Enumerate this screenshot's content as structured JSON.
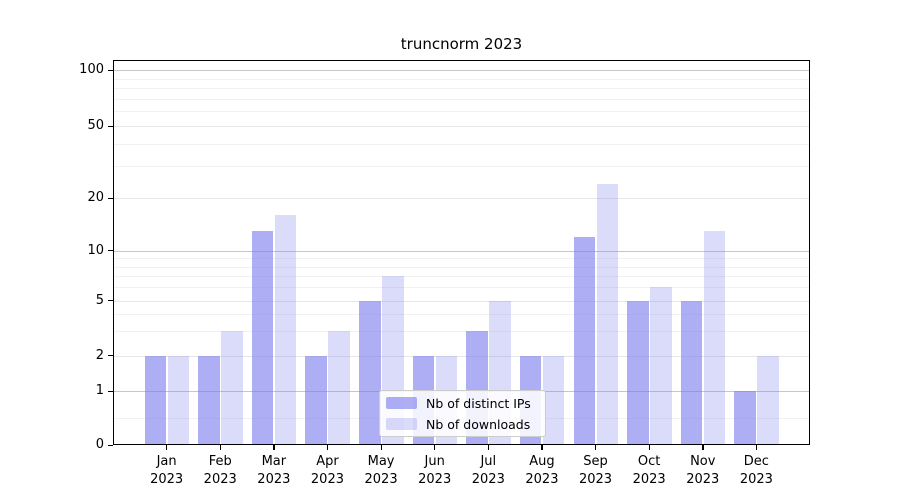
{
  "title": "truncnorm 2023",
  "legend": {
    "items": [
      {
        "label": "Nb of distinct IPs"
      },
      {
        "label": "Nb of downloads"
      }
    ]
  },
  "chart_data": {
    "type": "bar",
    "title": "truncnorm 2023",
    "categories": [
      "Jan 2023",
      "Feb 2023",
      "Mar 2023",
      "Apr 2023",
      "May 2023",
      "Jun 2023",
      "Jul 2023",
      "Aug 2023",
      "Sep 2023",
      "Oct 2023",
      "Nov 2023",
      "Dec 2023"
    ],
    "series": [
      {
        "name": "Nb of distinct IPs",
        "color": "rgba(124,124,238,0.62)",
        "values": [
          2,
          2,
          13,
          2,
          5,
          2,
          3,
          2,
          12,
          5,
          5,
          1
        ]
      },
      {
        "name": "Nb of downloads",
        "color": "rgba(124,124,238,0.28)",
        "values": [
          2,
          3,
          16,
          3,
          7,
          2,
          5,
          2,
          24,
          6,
          13,
          2
        ]
      }
    ],
    "xlabel": "",
    "ylabel": "",
    "yscale": "symlog",
    "ylim": [
      0,
      115
    ],
    "yticks": [
      0,
      1,
      2,
      5,
      10,
      20,
      50,
      100
    ],
    "minor_yticks": [
      0.5,
      3,
      4,
      6,
      7,
      8,
      9,
      30,
      40,
      60,
      70,
      80,
      90
    ],
    "grid": "on",
    "legend_position": "lower center inside plot",
    "colors": {
      "decade_gridline": "#c6c6c6",
      "tick_gridline": "#e6e6e6",
      "minor_gridline": "#f1f1f1",
      "axis": "#000000"
    }
  }
}
